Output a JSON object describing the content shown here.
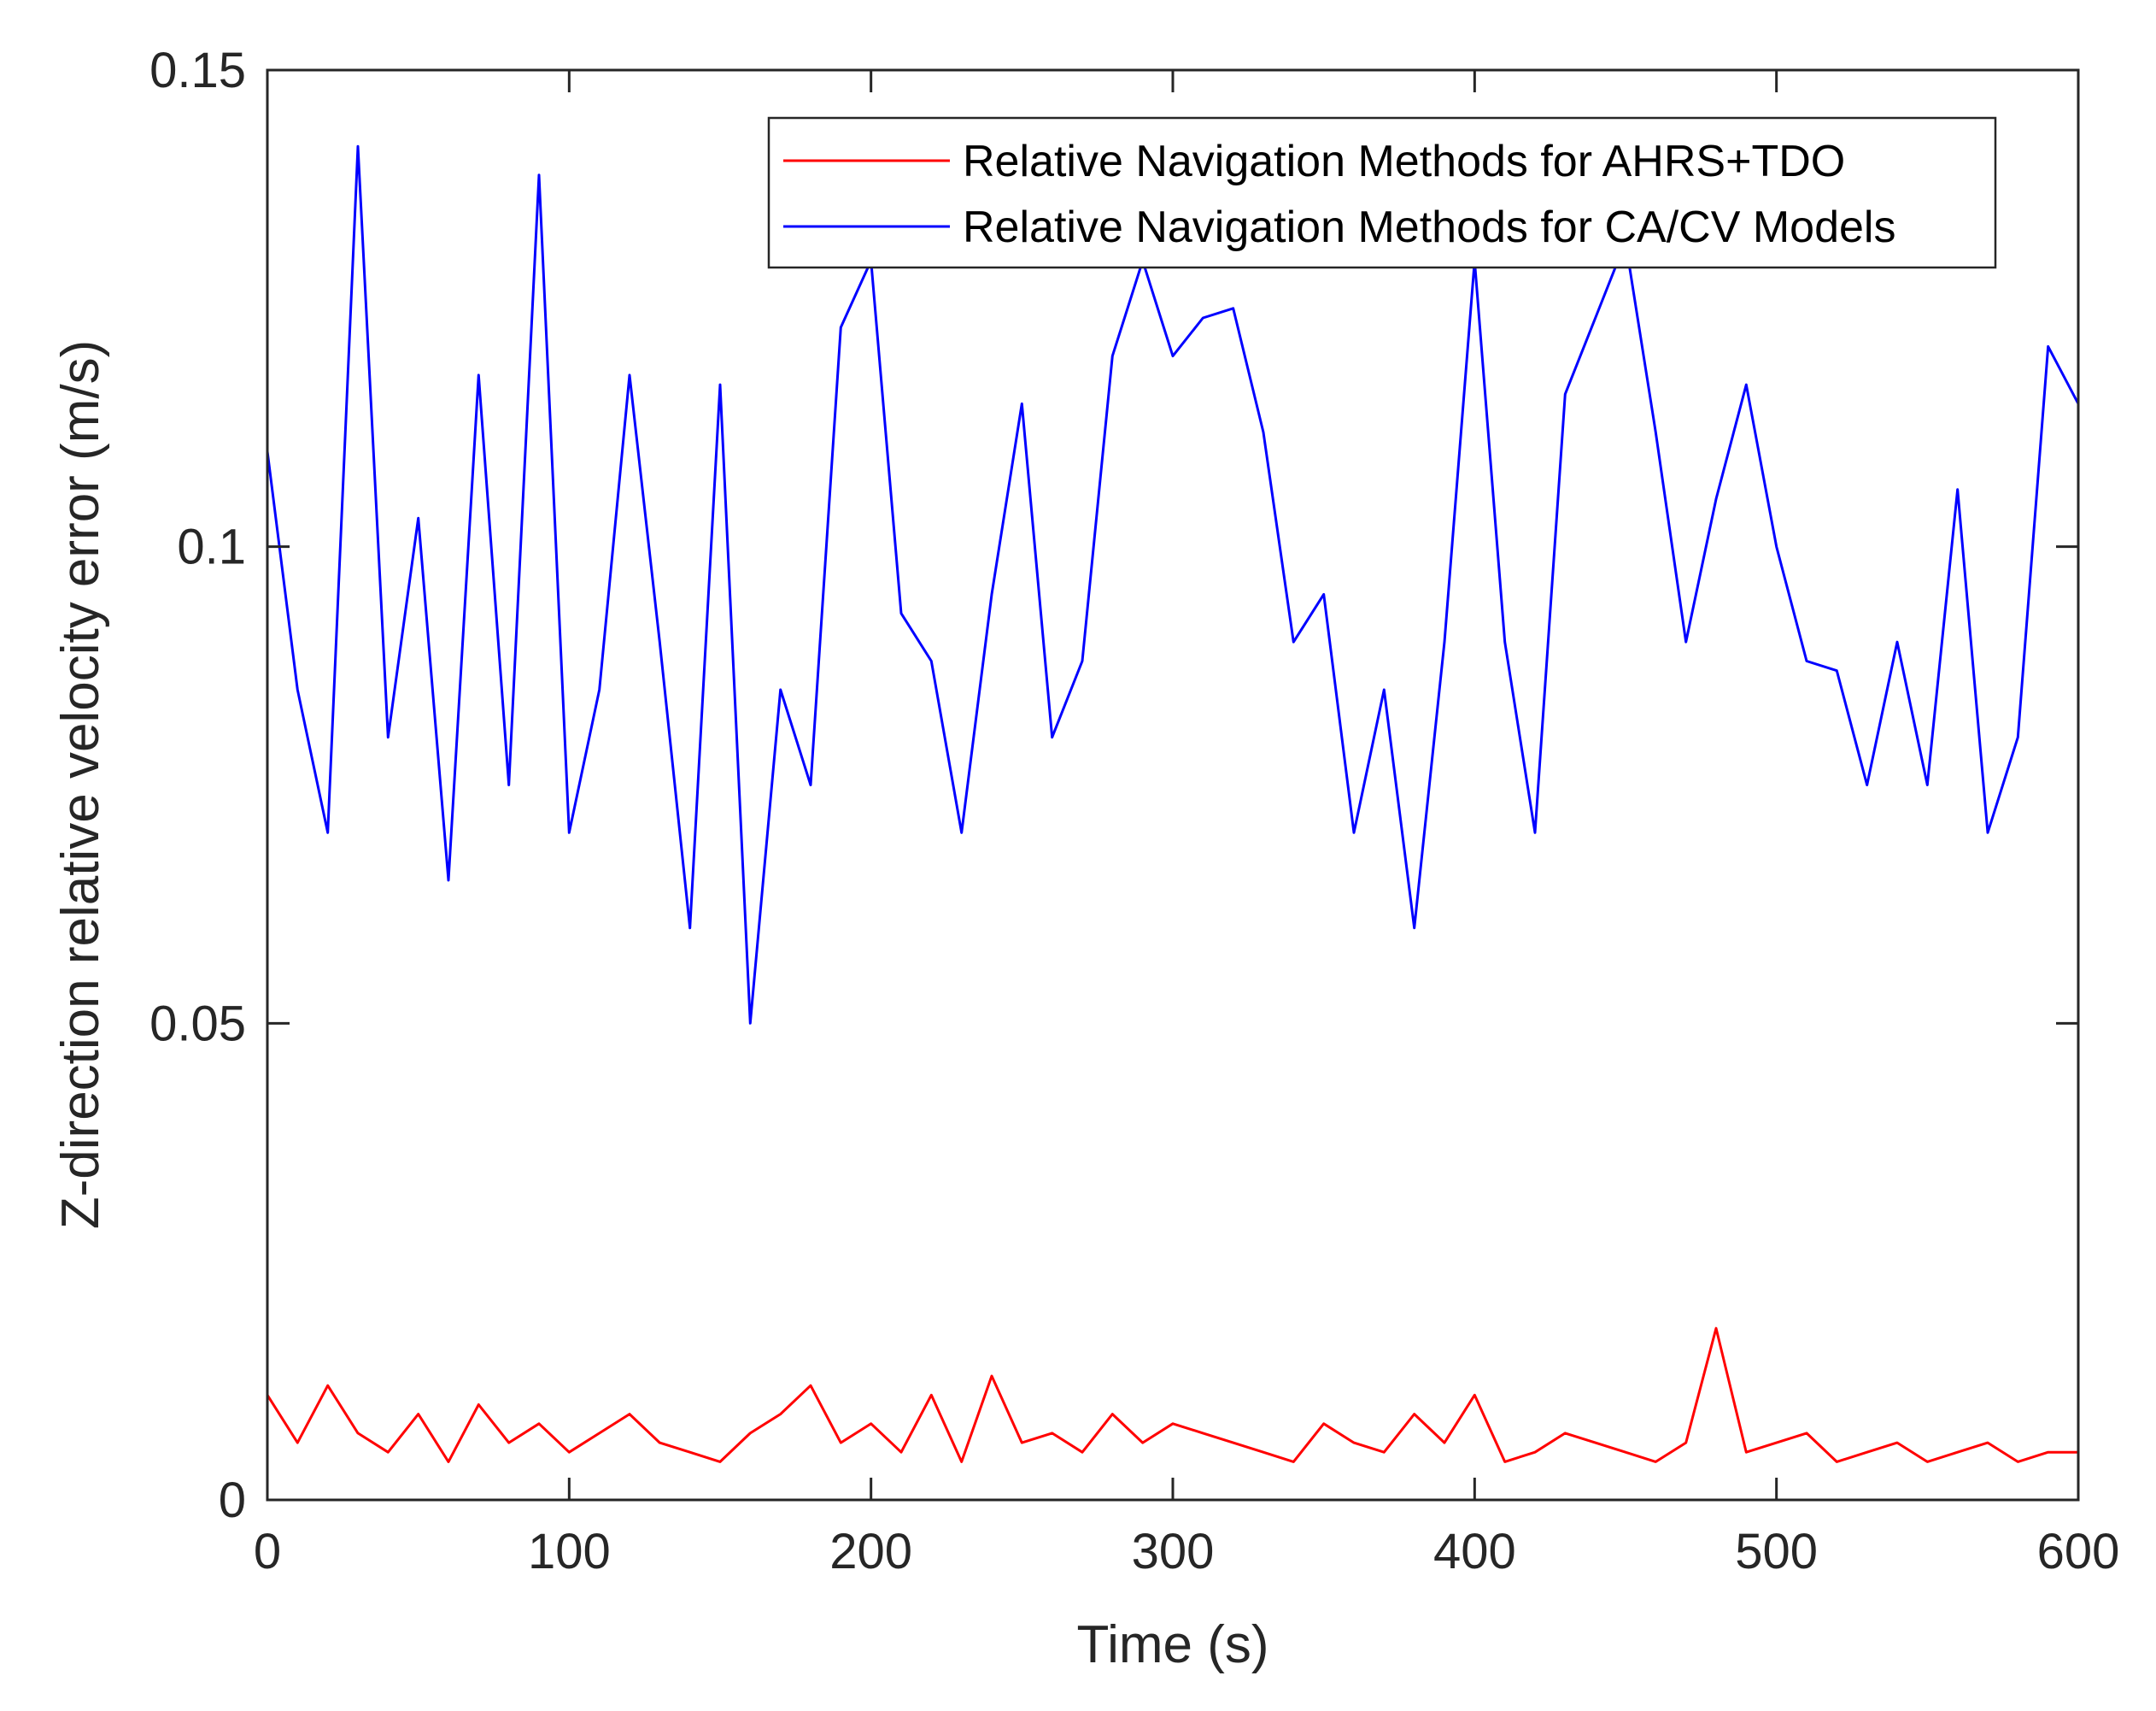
{
  "chart_data": {
    "type": "line",
    "title": "",
    "xlabel": "Time (s)",
    "ylabel": "Z-direction relative velocity error (m/s)",
    "xlim": [
      0,
      600
    ],
    "ylim": [
      0,
      0.15
    ],
    "xticks": [
      0,
      100,
      200,
      300,
      400,
      500,
      600
    ],
    "xtick_labels": [
      "0",
      "100",
      "200",
      "300",
      "400",
      "500",
      "600"
    ],
    "yticks": [
      0,
      0.05,
      0.1,
      0.15
    ],
    "ytick_labels": [
      "0",
      "0.05",
      "0.1",
      "0.15"
    ],
    "grid": false,
    "legend_position": "top-right",
    "series": [
      {
        "name": "Relative Navigation Methods for AHRS+TDO",
        "color": "#ff0000",
        "x": [
          0,
          10,
          20,
          30,
          40,
          50,
          60,
          70,
          80,
          90,
          100,
          110,
          120,
          130,
          140,
          150,
          160,
          170,
          180,
          190,
          200,
          210,
          220,
          230,
          240,
          250,
          260,
          270,
          280,
          290,
          300,
          310,
          320,
          330,
          340,
          350,
          360,
          370,
          380,
          390,
          400,
          410,
          420,
          430,
          440,
          450,
          460,
          470,
          480,
          490,
          500,
          510,
          520,
          530,
          540,
          550,
          560,
          570,
          580,
          590,
          600
        ],
        "values": [
          0.011,
          0.006,
          0.012,
          0.007,
          0.005,
          0.009,
          0.004,
          0.01,
          0.006,
          0.008,
          0.005,
          0.007,
          0.009,
          0.006,
          0.005,
          0.004,
          0.007,
          0.009,
          0.012,
          0.006,
          0.008,
          0.005,
          0.011,
          0.004,
          0.013,
          0.006,
          0.007,
          0.005,
          0.009,
          0.006,
          0.008,
          0.007,
          0.006,
          0.005,
          0.004,
          0.008,
          0.006,
          0.005,
          0.009,
          0.006,
          0.011,
          0.004,
          0.005,
          0.007,
          0.006,
          0.005,
          0.004,
          0.006,
          0.018,
          0.005,
          0.006,
          0.007,
          0.004,
          0.005,
          0.006,
          0.004,
          0.005,
          0.006,
          0.004,
          0.005,
          0.005
        ]
      },
      {
        "name": "Relative Navigation Methods for CA/CV Models",
        "color": "#0000ff",
        "x": [
          0,
          10,
          20,
          30,
          40,
          50,
          60,
          70,
          80,
          90,
          100,
          110,
          120,
          130,
          140,
          150,
          160,
          170,
          180,
          190,
          200,
          210,
          220,
          230,
          240,
          250,
          260,
          270,
          280,
          290,
          300,
          310,
          320,
          330,
          340,
          350,
          360,
          370,
          380,
          390,
          400,
          410,
          420,
          430,
          440,
          450,
          460,
          470,
          480,
          490,
          500,
          510,
          520,
          530,
          540,
          550,
          560,
          570,
          580,
          590,
          600
        ],
        "values": [
          0.11,
          0.085,
          0.07,
          0.142,
          0.08,
          0.103,
          0.065,
          0.118,
          0.075,
          0.139,
          0.07,
          0.085,
          0.118,
          0.09,
          0.06,
          0.117,
          0.05,
          0.085,
          0.075,
          0.123,
          0.13,
          0.093,
          0.088,
          0.07,
          0.095,
          0.115,
          0.08,
          0.088,
          0.12,
          0.13,
          0.12,
          0.124,
          0.125,
          0.112,
          0.09,
          0.095,
          0.07,
          0.085,
          0.06,
          0.09,
          0.13,
          0.09,
          0.07,
          0.116,
          0.124,
          0.132,
          0.112,
          0.09,
          0.105,
          0.117,
          0.1,
          0.088,
          0.087,
          0.075,
          0.09,
          0.075,
          0.106,
          0.07,
          0.08,
          0.121,
          0.115
        ]
      }
    ]
  }
}
